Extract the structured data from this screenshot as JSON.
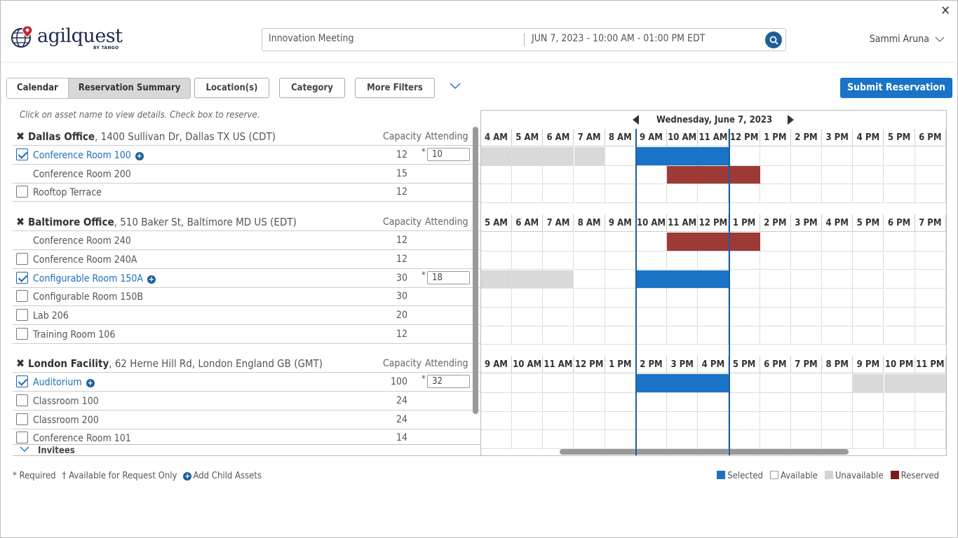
{
  "header": {
    "logo_text": "agilquest",
    "logo_sub": "BY TANGO",
    "search": {
      "meeting": "Innovation Meeting",
      "datetime": "JUN 7, 2023 - 10:00 AM - 01:00 PM EDT"
    },
    "user": "Sammi Aruna",
    "close_glyph": "✕"
  },
  "toolbar": {
    "tab_calendar": "Calendar",
    "tab_summary": "Reservation Summary",
    "locations": "Location(s)",
    "category": "Category",
    "more_filters": "More Filters",
    "submit": "Submit Reservation"
  },
  "instructions": "Click on asset name to view details. Check box to reserve.",
  "columns": {
    "capacity": "Capacity",
    "attending": "Attending"
  },
  "calendar_date": "Wednesday, June 7, 2023",
  "groups": [
    {
      "name": "Dallas Office",
      "address": ", 1400 Sullivan Dr, Dallas TX US (CDT)",
      "hours": [
        "4 AM",
        "5 AM",
        "6 AM",
        "7 AM",
        "8 AM",
        "9 AM",
        "10 AM",
        "11 AM",
        "12 PM",
        "1 PM",
        "2 PM",
        "3 PM",
        "4 PM",
        "5 PM",
        "6 PM"
      ],
      "rows": [
        {
          "name": "Conference Room 100",
          "checkbox": true,
          "checked": true,
          "capacity": "12",
          "attending": "10",
          "plus": true,
          "slots": [
            "u",
            "u",
            "u",
            "u",
            "a",
            "s",
            "s",
            "s",
            "a",
            "a",
            "a",
            "a",
            "a",
            "a",
            "a"
          ]
        },
        {
          "name": "Conference Room 200",
          "checkbox": false,
          "checked": false,
          "capacity": "15",
          "attending": null,
          "plus": false,
          "slots": [
            "a",
            "a",
            "a",
            "a",
            "a",
            "a",
            "r",
            "r",
            "r",
            "a",
            "a",
            "a",
            "a",
            "a",
            "a"
          ]
        },
        {
          "name": "Rooftop Terrace",
          "checkbox": true,
          "checked": false,
          "capacity": "12",
          "attending": null,
          "plus": false,
          "slots": [
            "a",
            "a",
            "a",
            "a",
            "a",
            "a",
            "a",
            "a",
            "a",
            "a",
            "a",
            "a",
            "a",
            "a",
            "a"
          ]
        }
      ]
    },
    {
      "name": "Baltimore Office",
      "address": ", 510 Baker St, Baltimore MD US (EDT)",
      "hours": [
        "5 AM",
        "6 AM",
        "7 AM",
        "8 AM",
        "9 AM",
        "10 AM",
        "11 AM",
        "12 PM",
        "1 PM",
        "2 PM",
        "3 PM",
        "4 PM",
        "5 PM",
        "6 PM",
        "7 PM"
      ],
      "rows": [
        {
          "name": "Conference Room 240",
          "checkbox": false,
          "checked": false,
          "capacity": "12",
          "attending": null,
          "plus": false,
          "slots": [
            "a",
            "a",
            "a",
            "a",
            "a",
            "a",
            "r",
            "r",
            "r",
            "a",
            "a",
            "a",
            "a",
            "a",
            "a"
          ]
        },
        {
          "name": "Conference Room 240A",
          "checkbox": true,
          "checked": false,
          "capacity": "12",
          "attending": null,
          "plus": false,
          "slots": [
            "a",
            "a",
            "a",
            "a",
            "a",
            "a",
            "a",
            "a",
            "a",
            "a",
            "a",
            "a",
            "a",
            "a",
            "a"
          ]
        },
        {
          "name": "Configurable Room 150A",
          "checkbox": true,
          "checked": true,
          "capacity": "30",
          "attending": "18",
          "plus": true,
          "slots": [
            "u",
            "u",
            "u",
            "a",
            "a",
            "s",
            "s",
            "s",
            "a",
            "a",
            "a",
            "a",
            "a",
            "a",
            "a"
          ]
        },
        {
          "name": "Configurable Room 150B",
          "checkbox": true,
          "checked": false,
          "capacity": "30",
          "attending": null,
          "plus": false,
          "slots": [
            "a",
            "a",
            "a",
            "a",
            "a",
            "a",
            "a",
            "a",
            "a",
            "a",
            "a",
            "a",
            "a",
            "a",
            "a"
          ]
        },
        {
          "name": "Lab 206",
          "checkbox": true,
          "checked": false,
          "capacity": "20",
          "attending": null,
          "plus": false,
          "slots": [
            "a",
            "a",
            "a",
            "a",
            "a",
            "a",
            "a",
            "a",
            "a",
            "a",
            "a",
            "a",
            "a",
            "a",
            "a"
          ]
        },
        {
          "name": "Training Room 106",
          "checkbox": true,
          "checked": false,
          "capacity": "12",
          "attending": null,
          "plus": false,
          "slots": [
            "a",
            "a",
            "a",
            "a",
            "a",
            "a",
            "a",
            "a",
            "a",
            "a",
            "a",
            "a",
            "a",
            "a",
            "a"
          ]
        }
      ]
    },
    {
      "name": "London Facility",
      "address": ", 62 Herne Hill Rd, London England GB (GMT)",
      "hours": [
        "9 AM",
        "10 AM",
        "11 AM",
        "12 PM",
        "1 PM",
        "2 PM",
        "3 PM",
        "4 PM",
        "5 PM",
        "6 PM",
        "7 PM",
        "8 PM",
        "9 PM",
        "10 PM",
        "11 PM"
      ],
      "rows": [
        {
          "name": "Auditorium",
          "checkbox": true,
          "checked": true,
          "capacity": "100",
          "attending": "32",
          "plus": true,
          "slots": [
            "a",
            "a",
            "a",
            "a",
            "a",
            "s",
            "s",
            "s",
            "a",
            "a",
            "a",
            "a",
            "u",
            "u",
            "u"
          ]
        },
        {
          "name": "Classroom 100",
          "checkbox": true,
          "checked": false,
          "capacity": "24",
          "attending": null,
          "plus": false,
          "slots": [
            "a",
            "a",
            "a",
            "a",
            "a",
            "a",
            "a",
            "a",
            "a",
            "a",
            "a",
            "a",
            "a",
            "a",
            "a"
          ]
        },
        {
          "name": "Classroom 200",
          "checkbox": true,
          "checked": false,
          "capacity": "24",
          "attending": null,
          "plus": false,
          "slots": [
            "a",
            "a",
            "a",
            "a",
            "a",
            "a",
            "a",
            "a",
            "a",
            "a",
            "a",
            "a",
            "a",
            "a",
            "a"
          ]
        },
        {
          "name": "Conference Room 101",
          "checkbox": true,
          "checked": false,
          "capacity": "14",
          "attending": null,
          "plus": false,
          "slots": [
            "a",
            "a",
            "a",
            "a",
            "a",
            "a",
            "a",
            "a",
            "a",
            "a",
            "a",
            "a",
            "a",
            "a",
            "a"
          ]
        }
      ]
    }
  ],
  "invitees": "Invitees",
  "legend": {
    "required": "* Required",
    "request_only": "† Available for Request Only",
    "add_child": "Add Child Assets",
    "selected": "Selected",
    "available": "Available",
    "unavailable": "Unavailable",
    "reserved": "Reserved"
  },
  "colors": {
    "selected": "#1a73c6",
    "reserved": "#9e3a36",
    "unavailable": "#d9d9d9",
    "accent": "#1d5f99"
  }
}
